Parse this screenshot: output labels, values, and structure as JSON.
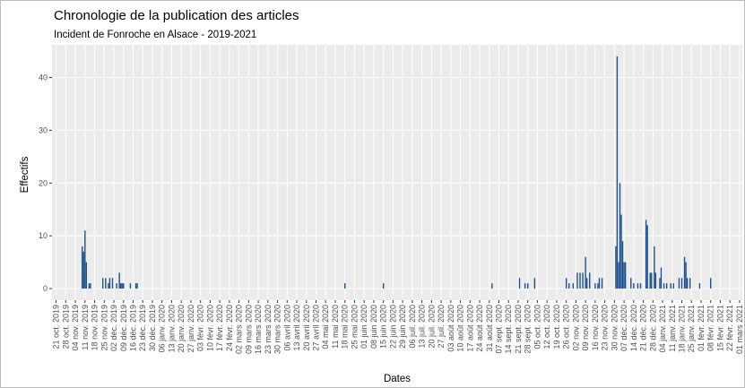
{
  "chart_data": {
    "type": "bar",
    "title": "Chronologie de la publication des articles",
    "subtitle": "Incident de Fonroche en Alsace - 2019-2021",
    "x_label": "Dates",
    "y_label": "Effectifs",
    "color": "#1c4f8c",
    "grid": true,
    "x": [
      "2019-11-09",
      "2019-11-10",
      "2019-11-11",
      "2019-11-12",
      "2019-11-14",
      "2019-11-15",
      "2019-11-24",
      "2019-11-26",
      "2019-11-28",
      "2019-11-29",
      "2019-12-01",
      "2019-12-04",
      "2019-12-06",
      "2019-12-07",
      "2019-12-08",
      "2019-12-09",
      "2019-12-14",
      "2019-12-18",
      "2019-12-19",
      "2020-05-18",
      "2020-06-15",
      "2020-09-02",
      "2020-09-22",
      "2020-09-26",
      "2020-09-28",
      "2020-10-03",
      "2020-10-26",
      "2020-10-28",
      "2020-10-31",
      "2020-11-03",
      "2020-11-05",
      "2020-11-07",
      "2020-11-09",
      "2020-11-10",
      "2020-11-12",
      "2020-11-16",
      "2020-11-18",
      "2020-11-19",
      "2020-11-21",
      "2020-12-01",
      "2020-12-02",
      "2020-12-03",
      "2020-12-04",
      "2020-12-05",
      "2020-12-06",
      "2020-12-07",
      "2020-12-08",
      "2020-12-12",
      "2020-12-14",
      "2020-12-17",
      "2020-12-19",
      "2020-12-23",
      "2020-12-24",
      "2020-12-26",
      "2020-12-27",
      "2020-12-29",
      "2020-12-30",
      "2021-01-02",
      "2021-01-03",
      "2021-01-05",
      "2021-01-07",
      "2021-01-10",
      "2021-01-12",
      "2021-01-16",
      "2021-01-18",
      "2021-01-20",
      "2021-01-21",
      "2021-01-22",
      "2021-01-24",
      "2021-01-31",
      "2021-02-08"
    ],
    "values": [
      8,
      7,
      11,
      5,
      1,
      1,
      2,
      2,
      1,
      2,
      2,
      1,
      3,
      1,
      1,
      1,
      1,
      1,
      1,
      1,
      1,
      1,
      2,
      1,
      1,
      2,
      2,
      1,
      1,
      3,
      3,
      3,
      6,
      2,
      3,
      1,
      1,
      2,
      2,
      8,
      44,
      5,
      20,
      14,
      9,
      5,
      5,
      2,
      1,
      1,
      1,
      13,
      12,
      3,
      3,
      8,
      3,
      2,
      4,
      1,
      1,
      1,
      1,
      2,
      2,
      6,
      5,
      2,
      2,
      1,
      2
    ],
    "xlim": [
      "2019-10-18",
      "2021-03-03"
    ],
    "xticks": [
      {
        "value": "2019-10-21",
        "label": "21 oct. 2019"
      },
      {
        "value": "2019-10-28",
        "label": "28 oct. 2019"
      },
      {
        "value": "2019-11-04",
        "label": "04 nov. 2019"
      },
      {
        "value": "2019-11-11",
        "label": "11 nov. 2019"
      },
      {
        "value": "2019-11-18",
        "label": "18 nov. 2019"
      },
      {
        "value": "2019-11-25",
        "label": "25 nov. 2019"
      },
      {
        "value": "2019-12-02",
        "label": "02 déc. 2019"
      },
      {
        "value": "2019-12-09",
        "label": "09 déc. 2019"
      },
      {
        "value": "2019-12-16",
        "label": "16 déc. 2019"
      },
      {
        "value": "2019-12-23",
        "label": "23 déc. 2019"
      },
      {
        "value": "2019-12-30",
        "label": "30 déc. 2019"
      },
      {
        "value": "2020-01-06",
        "label": "06 janv. 2020"
      },
      {
        "value": "2020-01-13",
        "label": "13 janv. 2020"
      },
      {
        "value": "2020-01-20",
        "label": "20 janv. 2020"
      },
      {
        "value": "2020-01-27",
        "label": "27 janv. 2020"
      },
      {
        "value": "2020-02-03",
        "label": "03 févr. 2020"
      },
      {
        "value": "2020-02-10",
        "label": "10 févr. 2020"
      },
      {
        "value": "2020-02-17",
        "label": "17 févr. 2020"
      },
      {
        "value": "2020-02-24",
        "label": "24 févr. 2020"
      },
      {
        "value": "2020-03-02",
        "label": "02 mars 2020"
      },
      {
        "value": "2020-03-09",
        "label": "09 mars 2020"
      },
      {
        "value": "2020-03-16",
        "label": "16 mars 2020"
      },
      {
        "value": "2020-03-23",
        "label": "23 mars 2020"
      },
      {
        "value": "2020-03-30",
        "label": "30 mars 2020"
      },
      {
        "value": "2020-04-06",
        "label": "06 avril 2020"
      },
      {
        "value": "2020-04-13",
        "label": "13 avril 2020"
      },
      {
        "value": "2020-04-20",
        "label": "20 avril 2020"
      },
      {
        "value": "2020-04-27",
        "label": "27 avril 2020"
      },
      {
        "value": "2020-05-04",
        "label": "04 mai 2020"
      },
      {
        "value": "2020-05-11",
        "label": "11 mai 2020"
      },
      {
        "value": "2020-05-18",
        "label": "18 mai 2020"
      },
      {
        "value": "2020-05-25",
        "label": "25 mai 2020"
      },
      {
        "value": "2020-06-01",
        "label": "01 juin 2020"
      },
      {
        "value": "2020-06-08",
        "label": "08 juin 2020"
      },
      {
        "value": "2020-06-15",
        "label": "15 juin 2020"
      },
      {
        "value": "2020-06-22",
        "label": "22 juin 2020"
      },
      {
        "value": "2020-06-29",
        "label": "29 juin 2020"
      },
      {
        "value": "2020-07-06",
        "label": "06 juil. 2020"
      },
      {
        "value": "2020-07-13",
        "label": "13 juil. 2020"
      },
      {
        "value": "2020-07-20",
        "label": "20 juil. 2020"
      },
      {
        "value": "2020-07-27",
        "label": "27 juil. 2020"
      },
      {
        "value": "2020-08-03",
        "label": "03 août 2020"
      },
      {
        "value": "2020-08-10",
        "label": "10 août 2020"
      },
      {
        "value": "2020-08-17",
        "label": "17 août 2020"
      },
      {
        "value": "2020-08-24",
        "label": "24 août 2020"
      },
      {
        "value": "2020-08-31",
        "label": "31 août 2020"
      },
      {
        "value": "2020-09-07",
        "label": "07 sept. 2020"
      },
      {
        "value": "2020-09-14",
        "label": "14 sept. 2020"
      },
      {
        "value": "2020-09-21",
        "label": "21 sept. 2020"
      },
      {
        "value": "2020-09-28",
        "label": "28 sept. 2020"
      },
      {
        "value": "2020-10-05",
        "label": "05 oct. 2020"
      },
      {
        "value": "2020-10-12",
        "label": "12 oct. 2020"
      },
      {
        "value": "2020-10-19",
        "label": "19 oct. 2020"
      },
      {
        "value": "2020-10-26",
        "label": "26 oct. 2020"
      },
      {
        "value": "2020-11-02",
        "label": "02 nov. 2020"
      },
      {
        "value": "2020-11-09",
        "label": "09 nov. 2020"
      },
      {
        "value": "2020-11-16",
        "label": "16 nov. 2020"
      },
      {
        "value": "2020-11-23",
        "label": "23 nov. 2020"
      },
      {
        "value": "2020-11-30",
        "label": "30 nov. 2020"
      },
      {
        "value": "2020-12-07",
        "label": "07 déc. 2020"
      },
      {
        "value": "2020-12-14",
        "label": "14 déc. 2020"
      },
      {
        "value": "2020-12-21",
        "label": "21 déc. 2020"
      },
      {
        "value": "2020-12-28",
        "label": "28 déc. 2020"
      },
      {
        "value": "2021-01-04",
        "label": "04 janv. 2021"
      },
      {
        "value": "2021-01-11",
        "label": "11 janv. 2021"
      },
      {
        "value": "2021-01-18",
        "label": "18 janv. 2021"
      },
      {
        "value": "2021-01-25",
        "label": "25 janv. 2021"
      },
      {
        "value": "2021-02-01",
        "label": "01 févr. 2021"
      },
      {
        "value": "2021-02-08",
        "label": "08 févr. 2021"
      },
      {
        "value": "2021-02-15",
        "label": "15 févr. 2021"
      },
      {
        "value": "2021-02-22",
        "label": "22 févr. 2021"
      },
      {
        "value": "2021-03-01",
        "label": "01 mars 2021"
      }
    ],
    "ylim": [
      -2.2,
      46.2
    ],
    "yticks": [
      0,
      10,
      20,
      30,
      40
    ]
  }
}
